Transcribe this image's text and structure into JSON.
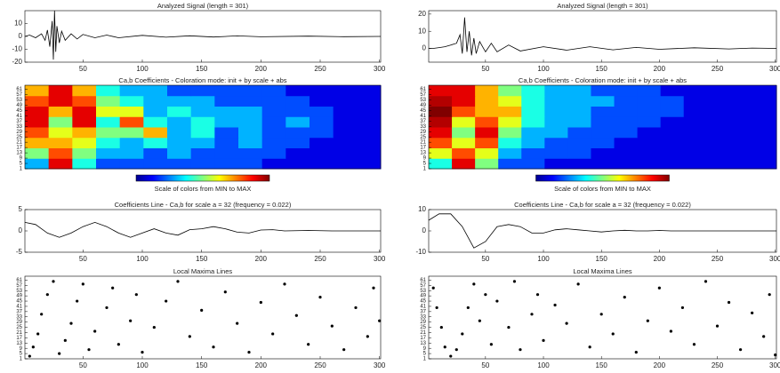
{
  "chart_data": [
    {
      "type": "line",
      "title": "Analyzed Signal (length = 301)",
      "color": "#000000",
      "x": [
        1,
        5,
        10,
        15,
        18,
        20,
        22,
        24,
        25,
        26,
        27,
        28,
        30,
        32,
        35,
        40,
        45,
        50,
        60,
        70,
        80,
        100,
        120,
        140,
        160,
        180,
        200,
        240,
        270,
        301
      ],
      "values": [
        0,
        1,
        -1,
        2,
        -3,
        5,
        -8,
        12,
        -18,
        20,
        -12,
        8,
        -5,
        4,
        -3,
        2,
        -2,
        1.5,
        -1,
        1,
        -1,
        0.8,
        -0.6,
        0.5,
        -0.5,
        0.4,
        -0.3,
        0.2,
        -0.2,
        0
      ],
      "xlim": [
        1,
        301
      ],
      "xticks": [
        50,
        100,
        150,
        200,
        250,
        300
      ],
      "ylim": [
        -20,
        20
      ],
      "yticks": [
        -20,
        -10,
        0,
        10
      ]
    },
    {
      "type": "heatmap",
      "title": "Ca,b Coefficients - Coloration mode: init + by scale + abs",
      "colormap": "jet",
      "colorbar_label": "Scale of colors from MIN to MAX",
      "values": [
        [
          0.3,
          0.9,
          0.4,
          0.2,
          0.2,
          0.2,
          0.2,
          0.2,
          0.2,
          0.2,
          0.1,
          0.1,
          0.1,
          0.1,
          0.1
        ],
        [
          0.5,
          0.8,
          0.5,
          0.3,
          0.3,
          0.2,
          0.3,
          0.2,
          0.2,
          0.2,
          0.2,
          0.1,
          0.1,
          0.1,
          0.1
        ],
        [
          0.7,
          0.7,
          0.6,
          0.4,
          0.3,
          0.4,
          0.3,
          0.3,
          0.2,
          0.3,
          0.2,
          0.2,
          0.1,
          0.1,
          0.1
        ],
        [
          0.8,
          0.6,
          0.7,
          0.5,
          0.5,
          0.7,
          0.3,
          0.4,
          0.2,
          0.3,
          0.2,
          0.2,
          0.2,
          0.1,
          0.1
        ],
        [
          0.9,
          0.5,
          0.9,
          0.4,
          0.8,
          0.4,
          0.3,
          0.4,
          0.3,
          0.3,
          0.2,
          0.3,
          0.2,
          0.1,
          0.1
        ],
        [
          0.9,
          0.7,
          0.9,
          0.6,
          0.6,
          0.3,
          0.4,
          0.3,
          0.3,
          0.3,
          0.2,
          0.2,
          0.2,
          0.1,
          0.1
        ],
        [
          0.8,
          0.9,
          0.8,
          0.5,
          0.4,
          0.3,
          0.3,
          0.3,
          0.2,
          0.2,
          0.2,
          0.2,
          0.1,
          0.1,
          0.1
        ],
        [
          0.7,
          0.9,
          0.7,
          0.4,
          0.3,
          0.3,
          0.2,
          0.2,
          0.2,
          0.2,
          0.2,
          0.1,
          0.1,
          0.1,
          0.1
        ]
      ],
      "xlim": [
        1,
        301
      ],
      "ylim": [
        1,
        64
      ],
      "yticks": [
        1,
        5,
        9,
        13,
        17,
        21,
        25,
        29,
        33,
        37,
        41,
        45,
        49,
        53,
        57,
        61
      ]
    },
    {
      "type": "line",
      "title": "Coefficients Line - Ca,b for scale a = 32  (frequency =   0.022)",
      "color": "#000000",
      "x": [
        1,
        10,
        20,
        30,
        40,
        50,
        60,
        70,
        80,
        90,
        100,
        110,
        120,
        130,
        140,
        150,
        160,
        170,
        180,
        190,
        200,
        210,
        220,
        240,
        260,
        280,
        301
      ],
      "values": [
        2,
        1.5,
        -0.5,
        -1.5,
        -0.5,
        1,
        2,
        1,
        -0.5,
        -1.5,
        -0.5,
        0.5,
        -0.5,
        -1,
        0.3,
        0.5,
        1,
        0.5,
        -0.3,
        -0.5,
        0.2,
        0.3,
        0,
        0.1,
        0,
        0,
        0
      ],
      "xlim": [
        1,
        301
      ],
      "xticks": [
        50,
        100,
        150,
        200,
        250,
        300
      ],
      "ylim": [
        -5,
        5
      ],
      "yticks": [
        -5,
        0,
        5
      ]
    },
    {
      "type": "scatter",
      "title": "Local Maxima Lines",
      "color": "#000000",
      "x": [
        5,
        8,
        12,
        15,
        20,
        25,
        30,
        35,
        40,
        45,
        50,
        55,
        60,
        70,
        75,
        80,
        90,
        95,
        100,
        110,
        120,
        130,
        140,
        150,
        160,
        170,
        180,
        190,
        200,
        210,
        220,
        230,
        240,
        250,
        260,
        270,
        280,
        290,
        295,
        300
      ],
      "values": [
        3,
        10,
        20,
        35,
        50,
        60,
        5,
        15,
        28,
        45,
        58,
        8,
        22,
        40,
        55,
        12,
        30,
        50,
        6,
        25,
        45,
        60,
        18,
        38,
        10,
        52,
        28,
        6,
        44,
        20,
        58,
        34,
        12,
        48,
        26,
        8,
        40,
        18,
        55,
        30
      ],
      "xlim": [
        1,
        301
      ],
      "xticks": [
        50,
        100,
        150,
        200,
        250,
        300
      ],
      "ylim": [
        1,
        64
      ],
      "yticks": [
        1,
        5,
        9,
        13,
        17,
        21,
        25,
        29,
        33,
        37,
        41,
        45,
        49,
        53,
        57,
        61
      ]
    },
    {
      "type": "line",
      "title": "Analyzed Signal (length = 301)",
      "color": "#000000",
      "x": [
        1,
        5,
        10,
        15,
        20,
        25,
        28,
        30,
        32,
        34,
        36,
        38,
        40,
        42,
        45,
        50,
        55,
        60,
        70,
        80,
        100,
        120,
        140,
        160,
        180,
        200,
        230,
        260,
        280,
        301
      ],
      "values": [
        0,
        0,
        0.5,
        1,
        2,
        3,
        8,
        -3,
        18,
        -2,
        10,
        -4,
        6,
        -3,
        4,
        -2,
        3,
        -2,
        2,
        -1.5,
        1,
        -1,
        1,
        -0.8,
        0.6,
        -0.5,
        0.4,
        -0.3,
        0.2,
        0
      ],
      "xlim": [
        1,
        301
      ],
      "xticks": [
        50,
        100,
        150,
        200,
        250,
        300
      ],
      "ylim": [
        -8,
        22
      ],
      "yticks": [
        0,
        10,
        20
      ]
    },
    {
      "type": "heatmap",
      "title": "Ca,b Coefficients - Coloration mode: init + by scale + abs",
      "colormap": "jet",
      "colorbar_label": "Scale of colors from MIN to MAX",
      "values": [
        [
          0.4,
          0.9,
          0.5,
          0.2,
          0.2,
          0.1,
          0.1,
          0.1,
          0.1,
          0.1,
          0.1,
          0.1,
          0.1,
          0.1,
          0.1
        ],
        [
          0.6,
          0.8,
          0.6,
          0.3,
          0.2,
          0.2,
          0.2,
          0.1,
          0.1,
          0.1,
          0.1,
          0.1,
          0.1,
          0.1,
          0.1
        ],
        [
          0.8,
          0.6,
          0.8,
          0.4,
          0.3,
          0.2,
          0.2,
          0.2,
          0.1,
          0.1,
          0.1,
          0.1,
          0.1,
          0.1,
          0.1
        ],
        [
          0.9,
          0.5,
          0.9,
          0.5,
          0.3,
          0.3,
          0.2,
          0.2,
          0.2,
          0.1,
          0.1,
          0.1,
          0.1,
          0.1,
          0.1
        ],
        [
          0.95,
          0.6,
          0.8,
          0.6,
          0.4,
          0.3,
          0.3,
          0.2,
          0.2,
          0.2,
          0.1,
          0.1,
          0.1,
          0.1,
          0.1
        ],
        [
          1,
          0.8,
          0.7,
          0.7,
          0.4,
          0.3,
          0.3,
          0.2,
          0.2,
          0.2,
          0.2,
          0.1,
          0.1,
          0.1,
          0.1
        ],
        [
          0.95,
          0.9,
          0.7,
          0.6,
          0.4,
          0.3,
          0.3,
          0.3,
          0.2,
          0.2,
          0.2,
          0.1,
          0.1,
          0.1,
          0.1
        ],
        [
          0.9,
          0.9,
          0.7,
          0.5,
          0.4,
          0.3,
          0.3,
          0.2,
          0.2,
          0.2,
          0.1,
          0.1,
          0.1,
          0.1,
          0.1
        ]
      ],
      "xlim": [
        1,
        301
      ],
      "ylim": [
        1,
        64
      ],
      "yticks": [
        1,
        5,
        9,
        13,
        17,
        21,
        25,
        29,
        33,
        37,
        41,
        45,
        49,
        53,
        57,
        61
      ]
    },
    {
      "type": "line",
      "title": "Coefficients Line - Ca,b for scale a = 32  (frequency =   0.022)",
      "color": "#000000",
      "x": [
        1,
        10,
        20,
        30,
        40,
        50,
        60,
        70,
        80,
        90,
        100,
        110,
        120,
        130,
        140,
        150,
        160,
        170,
        180,
        190,
        200,
        210,
        220,
        240,
        260,
        280,
        301
      ],
      "values": [
        5,
        8,
        8,
        2,
        -8,
        -5,
        2,
        3,
        2,
        -1,
        -1,
        0.5,
        1,
        0.5,
        0,
        -0.5,
        0,
        0.3,
        0,
        0,
        0.2,
        0,
        0,
        0,
        0,
        0,
        0
      ],
      "xlim": [
        1,
        301
      ],
      "xticks": [
        50,
        100,
        150,
        200,
        250,
        300
      ],
      "ylim": [
        -10,
        10
      ],
      "yticks": [
        -10,
        0,
        10
      ]
    },
    {
      "type": "scatter",
      "title": "Local Maxima Lines",
      "color": "#000000",
      "x": [
        5,
        8,
        12,
        15,
        20,
        25,
        30,
        35,
        40,
        45,
        50,
        55,
        60,
        70,
        75,
        80,
        90,
        95,
        100,
        110,
        120,
        130,
        140,
        150,
        160,
        170,
        180,
        190,
        200,
        210,
        220,
        230,
        240,
        250,
        260,
        270,
        280,
        290,
        295,
        300
      ],
      "values": [
        55,
        40,
        25,
        10,
        3,
        8,
        20,
        40,
        58,
        30,
        50,
        12,
        45,
        25,
        60,
        8,
        35,
        50,
        15,
        42,
        28,
        58,
        10,
        35,
        20,
        48,
        6,
        30,
        55,
        22,
        40,
        12,
        60,
        26,
        44,
        8,
        36,
        18,
        50,
        4
      ],
      "xlim": [
        1,
        301
      ],
      "xticks": [
        50,
        100,
        150,
        200,
        250,
        300
      ],
      "ylim": [
        1,
        64
      ],
      "yticks": [
        1,
        5,
        9,
        13,
        17,
        21,
        25,
        29,
        33,
        37,
        41,
        45,
        49,
        53,
        57,
        61
      ]
    }
  ]
}
